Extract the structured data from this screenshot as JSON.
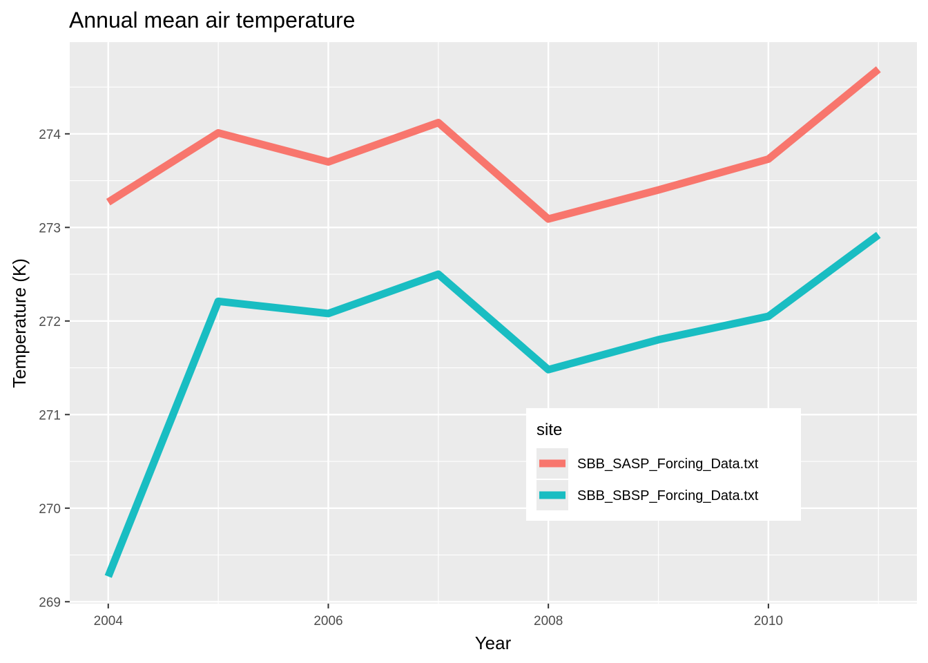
{
  "chart_data": {
    "type": "line",
    "title": "Annual mean air temperature",
    "xlabel": "Year",
    "ylabel": "Temperature (K)",
    "x": [
      2004,
      2005,
      2006,
      2007,
      2008,
      2009,
      2010,
      2011
    ],
    "xlim": [
      2003.65,
      2011.35
    ],
    "ylim": [
      268.98,
      274.98
    ],
    "x_ticks": [
      2004,
      2006,
      2008,
      2010
    ],
    "y_ticks": [
      269,
      270,
      271,
      272,
      273,
      274
    ],
    "grid": true,
    "legend": {
      "title": "site",
      "placement": "inside-bottom-right"
    },
    "series": [
      {
        "name": "SBB_SASP_Forcing_Data.txt",
        "color": "#F8766D",
        "values": [
          273.27,
          274.01,
          273.7,
          274.12,
          273.09,
          273.4,
          273.73,
          274.69
        ]
      },
      {
        "name": "SBB_SBSP_Forcing_Data.txt",
        "color": "#19BDC2",
        "values": [
          269.27,
          272.21,
          272.08,
          272.5,
          271.48,
          271.8,
          272.05,
          272.92
        ]
      }
    ]
  }
}
